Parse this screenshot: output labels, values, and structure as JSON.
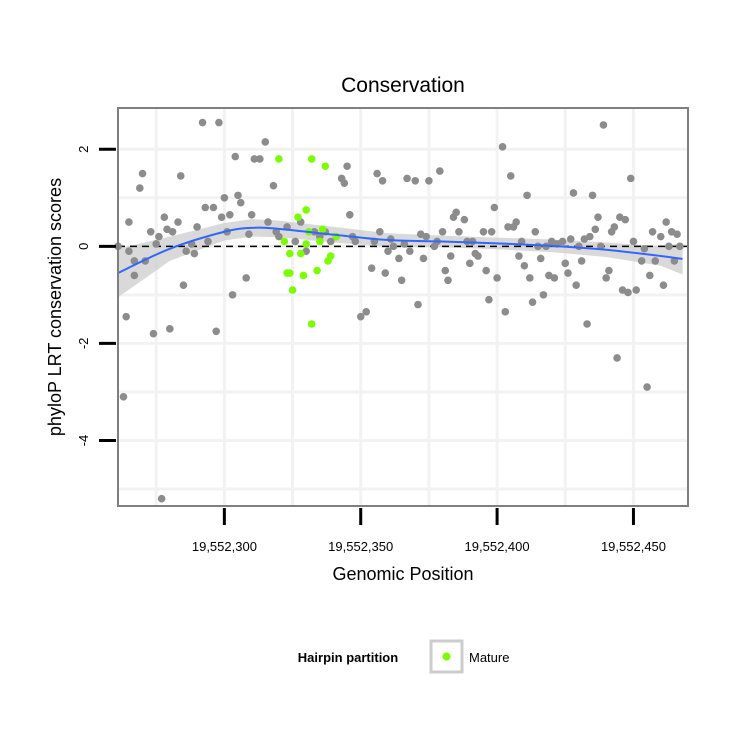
{
  "chart_data": {
    "type": "scatter",
    "title": "Conservation",
    "xlabel": "Genomic Position",
    "ylabel": "phyloP LRT conservation scores",
    "xlim": [
      19552261,
      19552470
    ],
    "ylim": [
      -5.35,
      2.85
    ],
    "x_ticks": [
      19552300,
      19552350,
      19552400,
      19552450
    ],
    "x_tick_labels": [
      "19,552,300",
      "19,552,350",
      "19,552,400",
      "19,552,450"
    ],
    "y_ticks": [
      -4,
      -2,
      0,
      2
    ],
    "y_tick_labels": [
      "-4",
      "-2",
      "0",
      "2"
    ],
    "reference_line": {
      "y": 0,
      "style": "dashed"
    },
    "legend": {
      "title": "Hairpin partition",
      "entries": [
        {
          "label": "Mature",
          "color": "#7cfc00"
        }
      ],
      "position": "bottom"
    },
    "grid": true,
    "colors": {
      "other": "#8c8c8c",
      "mature": "#7cfc00",
      "smooth": "#3366ff",
      "band": "#cccccc"
    },
    "smooth": {
      "x": [
        19552261,
        19552280,
        19552300,
        19552310,
        19552320,
        19552340,
        19552360,
        19552380,
        19552400,
        19552420,
        19552440,
        19552460,
        19552468
      ],
      "y": [
        -0.55,
        -0.05,
        0.3,
        0.38,
        0.36,
        0.24,
        0.13,
        0.1,
        0.06,
        0.01,
        -0.07,
        -0.2,
        -0.26
      ],
      "lower": [
        -1.05,
        -0.3,
        0.12,
        0.2,
        0.19,
        0.08,
        -0.01,
        -0.02,
        -0.06,
        -0.12,
        -0.22,
        -0.4,
        -0.58
      ],
      "upper": [
        -0.05,
        0.2,
        0.48,
        0.56,
        0.53,
        0.4,
        0.27,
        0.22,
        0.18,
        0.14,
        0.08,
        0.0,
        0.06
      ]
    },
    "series": [
      {
        "name": "",
        "color": "#8c8c8c",
        "points": [
          [
            19552261,
            0.0
          ],
          [
            19552263,
            -3.1
          ],
          [
            19552264,
            -1.45
          ],
          [
            19552265,
            0.5
          ],
          [
            19552265,
            -0.1
          ],
          [
            19552267,
            -0.3
          ],
          [
            19552267,
            -0.6
          ],
          [
            19552269,
            1.2
          ],
          [
            19552270,
            1.5
          ],
          [
            19552271,
            -0.3
          ],
          [
            19552273,
            0.3
          ],
          [
            19552274,
            -1.8
          ],
          [
            19552275,
            0.05
          ],
          [
            19552276,
            0.2
          ],
          [
            19552277,
            -5.2
          ],
          [
            19552278,
            0.6
          ],
          [
            19552279,
            0.35
          ],
          [
            19552280,
            -1.7
          ],
          [
            19552281,
            0.3
          ],
          [
            19552283,
            0.5
          ],
          [
            19552284,
            1.45
          ],
          [
            19552285,
            -0.8
          ],
          [
            19552286,
            -0.1
          ],
          [
            19552288,
            0.05
          ],
          [
            19552289,
            -0.15
          ],
          [
            19552290,
            0.4
          ],
          [
            19552292,
            2.55
          ],
          [
            19552293,
            0.8
          ],
          [
            19552294,
            0.1
          ],
          [
            19552296,
            0.8
          ],
          [
            19552297,
            -1.75
          ],
          [
            19552298,
            2.55
          ],
          [
            19552299,
            0.6
          ],
          [
            19552300,
            1.0
          ],
          [
            19552301,
            0.3
          ],
          [
            19552302,
            0.65
          ],
          [
            19552303,
            -1.0
          ],
          [
            19552304,
            1.85
          ],
          [
            19552305,
            1.05
          ],
          [
            19552306,
            0.9
          ],
          [
            19552308,
            -0.65
          ],
          [
            19552309,
            0.25
          ],
          [
            19552310,
            0.65
          ],
          [
            19552311,
            1.8
          ],
          [
            19552313,
            1.8
          ],
          [
            19552315,
            2.15
          ],
          [
            19552316,
            0.5
          ],
          [
            19552318,
            1.25
          ],
          [
            19552319,
            0.3
          ],
          [
            19552320,
            0.2
          ],
          [
            19552323,
            0.4
          ],
          [
            19552326,
            0.1
          ],
          [
            19552328,
            0.5
          ],
          [
            19552330,
            -0.1
          ],
          [
            19552333,
            0.3
          ],
          [
            19552335,
            0.2
          ],
          [
            19552337,
            0.3
          ],
          [
            19552339,
            0.1
          ],
          [
            19552341,
            0.2
          ],
          [
            19552343,
            1.4
          ],
          [
            19552344,
            1.3
          ],
          [
            19552345,
            1.65
          ],
          [
            19552346,
            0.65
          ],
          [
            19552347,
            0.2
          ],
          [
            19552348,
            0.1
          ],
          [
            19552350,
            -1.45
          ],
          [
            19552352,
            -1.35
          ],
          [
            19552354,
            -0.45
          ],
          [
            19552355,
            0.1
          ],
          [
            19552356,
            1.5
          ],
          [
            19552357,
            0.3
          ],
          [
            19552358,
            1.35
          ],
          [
            19552359,
            -0.55
          ],
          [
            19552360,
            -0.1
          ],
          [
            19552361,
            0.15
          ],
          [
            19552362,
            0.0
          ],
          [
            19552364,
            -0.25
          ],
          [
            19552365,
            -0.7
          ],
          [
            19552366,
            0.05
          ],
          [
            19552367,
            1.4
          ],
          [
            19552368,
            -0.1
          ],
          [
            19552370,
            1.35
          ],
          [
            19552371,
            -1.2
          ],
          [
            19552372,
            0.25
          ],
          [
            19552373,
            -0.25
          ],
          [
            19552374,
            0.2
          ],
          [
            19552375,
            1.35
          ],
          [
            19552377,
            0.0
          ],
          [
            19552378,
            0.1
          ],
          [
            19552379,
            1.55
          ],
          [
            19552380,
            0.3
          ],
          [
            19552381,
            -0.5
          ],
          [
            19552382,
            -0.7
          ],
          [
            19552383,
            -0.2
          ],
          [
            19552384,
            0.6
          ],
          [
            19552385,
            0.7
          ],
          [
            19552386,
            0.3
          ],
          [
            19552388,
            0.55
          ],
          [
            19552389,
            0.1
          ],
          [
            19552390,
            -0.35
          ],
          [
            19552391,
            0.1
          ],
          [
            19552392,
            -0.15
          ],
          [
            19552393,
            -0.2
          ],
          [
            19552395,
            0.3
          ],
          [
            19552396,
            -0.5
          ],
          [
            19552397,
            -1.1
          ],
          [
            19552398,
            0.3
          ],
          [
            19552399,
            0.8
          ],
          [
            19552400,
            -0.65
          ],
          [
            19552402,
            2.05
          ],
          [
            19552403,
            -1.35
          ],
          [
            19552404,
            0.4
          ],
          [
            19552405,
            1.45
          ],
          [
            19552406,
            0.4
          ],
          [
            19552407,
            0.5
          ],
          [
            19552408,
            -0.2
          ],
          [
            19552409,
            0.1
          ],
          [
            19552410,
            -0.4
          ],
          [
            19552411,
            1.05
          ],
          [
            19552412,
            -0.65
          ],
          [
            19552413,
            -1.15
          ],
          [
            19552414,
            0.3
          ],
          [
            19552415,
            0.0
          ],
          [
            19552416,
            -0.25
          ],
          [
            19552417,
            -1.0
          ],
          [
            19552418,
            0.0
          ],
          [
            19552419,
            -0.6
          ],
          [
            19552420,
            0.1
          ],
          [
            19552421,
            -0.65
          ],
          [
            19552422,
            0.05
          ],
          [
            19552424,
            0.1
          ],
          [
            19552425,
            -0.35
          ],
          [
            19552426,
            -0.55
          ],
          [
            19552427,
            0.15
          ],
          [
            19552428,
            1.1
          ],
          [
            19552429,
            -0.8
          ],
          [
            19552430,
            0.0
          ],
          [
            19552431,
            -0.3
          ],
          [
            19552432,
            0.15
          ],
          [
            19552433,
            -1.6
          ],
          [
            19552434,
            0.2
          ],
          [
            19552435,
            1.05
          ],
          [
            19552436,
            0.35
          ],
          [
            19552437,
            0.6
          ],
          [
            19552438,
            0.0
          ],
          [
            19552439,
            2.5
          ],
          [
            19552440,
            -0.65
          ],
          [
            19552441,
            -0.5
          ],
          [
            19552442,
            0.3
          ],
          [
            19552443,
            0.4
          ],
          [
            19552444,
            -2.3
          ],
          [
            19552445,
            0.6
          ],
          [
            19552446,
            -0.9
          ],
          [
            19552447,
            0.55
          ],
          [
            19552448,
            -0.95
          ],
          [
            19552449,
            1.4
          ],
          [
            19552450,
            0.1
          ],
          [
            19552451,
            -0.9
          ],
          [
            19552453,
            -0.3
          ],
          [
            19552454,
            -0.05
          ],
          [
            19552455,
            -2.9
          ],
          [
            19552456,
            -0.6
          ],
          [
            19552457,
            0.3
          ],
          [
            19552458,
            -0.3
          ],
          [
            19552460,
            0.2
          ],
          [
            19552461,
            -0.8
          ],
          [
            19552462,
            0.5
          ],
          [
            19552463,
            0.0
          ],
          [
            19552464,
            0.3
          ],
          [
            19552465,
            -0.3
          ],
          [
            19552466,
            0.25
          ],
          [
            19552467,
            0.0
          ]
        ]
      },
      {
        "name": "Mature",
        "color": "#7cfc00",
        "points": [
          [
            19552320,
            1.8
          ],
          [
            19552322,
            0.1
          ],
          [
            19552323,
            -0.55
          ],
          [
            19552324,
            -0.15
          ],
          [
            19552324,
            -0.55
          ],
          [
            19552325,
            -0.9
          ],
          [
            19552327,
            0.6
          ],
          [
            19552328,
            -0.15
          ],
          [
            19552329,
            -0.6
          ],
          [
            19552330,
            0.05
          ],
          [
            19552330,
            0.75
          ],
          [
            19552331,
            0.3
          ],
          [
            19552332,
            -1.6
          ],
          [
            19552332,
            1.8
          ],
          [
            19552334,
            -0.5
          ],
          [
            19552335,
            0.1
          ],
          [
            19552336,
            0.35
          ],
          [
            19552337,
            1.65
          ],
          [
            19552338,
            -0.3
          ],
          [
            19552339,
            -0.2
          ],
          [
            19552341,
            0.2
          ]
        ]
      }
    ]
  }
}
